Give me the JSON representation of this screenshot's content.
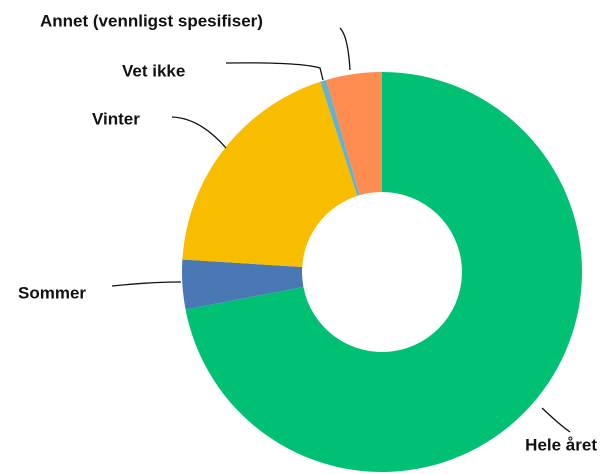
{
  "chart_data": {
    "type": "donut",
    "categories": [
      "Hele året",
      "Sommer",
      "Vinter",
      "Vet ikke",
      "Annet (vennligst spesifiser)"
    ],
    "values": [
      72,
      4,
      19,
      0.5,
      4.5
    ],
    "colors": [
      "#00c073",
      "#4a78b5",
      "#f9bd00",
      "#6ab0c8",
      "#ff8c50"
    ]
  }
}
